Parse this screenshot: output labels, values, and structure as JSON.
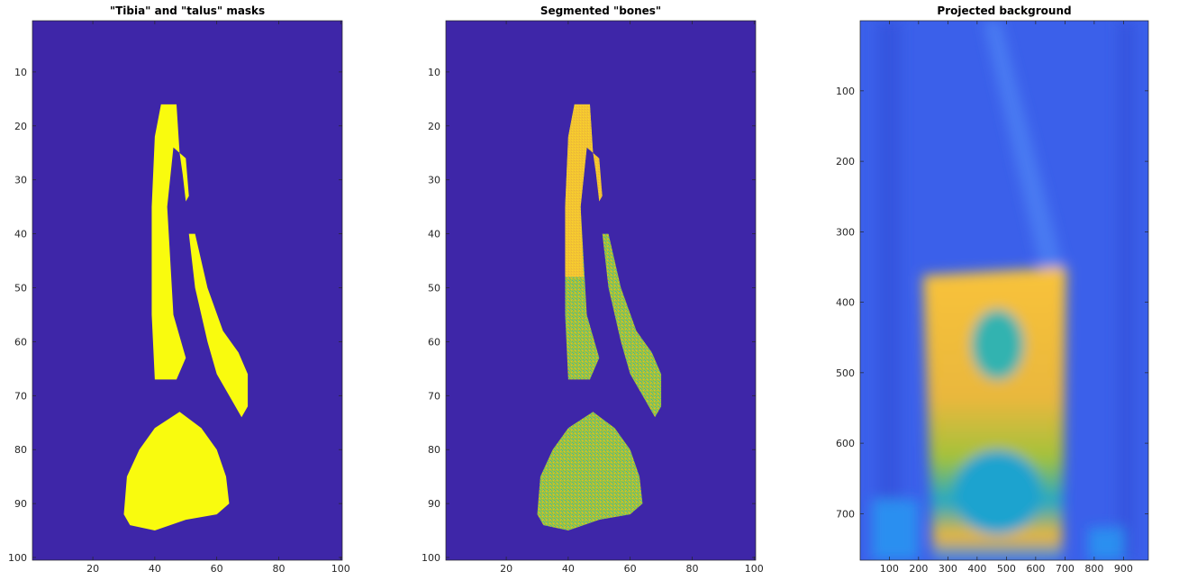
{
  "chart_data": [
    {
      "type": "image",
      "title": "\"Tibia\" and \"talus\" masks",
      "xlim": [
        0.5,
        100.5
      ],
      "ylim": [
        100.5,
        0.5
      ],
      "xticks": [
        20,
        40,
        60,
        80,
        100
      ],
      "yticks": [
        10,
        20,
        30,
        40,
        50,
        60,
        70,
        80,
        90,
        100
      ]
    },
    {
      "type": "image",
      "title": "Segmented \"bones\"",
      "xlim": [
        0.5,
        100.5
      ],
      "ylim": [
        100.5,
        0.5
      ],
      "xticks": [
        20,
        40,
        60,
        80,
        100
      ],
      "yticks": [
        10,
        20,
        30,
        40,
        50,
        60,
        70,
        80,
        90,
        100
      ]
    },
    {
      "type": "image",
      "title": "Projected background",
      "xlim": [
        0.5,
        985
      ],
      "ylim": [
        766,
        0.5
      ],
      "xticks": [
        100,
        200,
        300,
        400,
        500,
        600,
        700,
        800,
        900
      ],
      "yticks": [
        100,
        200,
        300,
        400,
        500,
        600,
        700
      ]
    }
  ]
}
